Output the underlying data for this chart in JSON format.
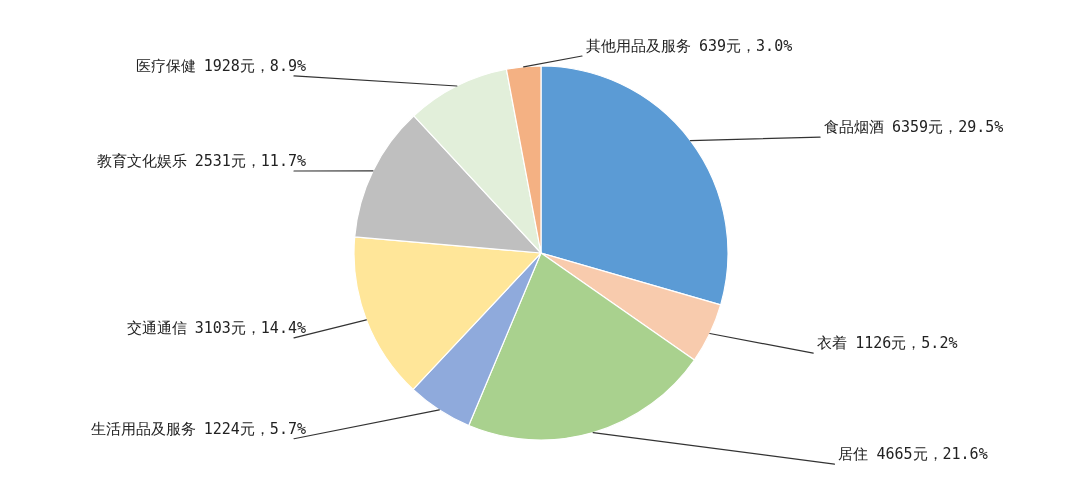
{
  "chart_data": {
    "type": "pie",
    "categories": [
      "食品烟酒",
      "衣着",
      "居住",
      "生活用品及服务",
      "交通通信",
      "教育文化娱乐",
      "医疗保健",
      "其他用品及服务"
    ],
    "values": [
      6359,
      1126,
      4665,
      1224,
      3103,
      2531,
      1928,
      639
    ],
    "colors": [
      "#5b9bd5",
      "#f8cbad",
      "#a9d18e",
      "#8faadc",
      "#ffe699",
      "#bfbfbf",
      "#e2efda",
      "#f4b183"
    ],
    "value_labels": [
      "6359元，29.5%",
      "1126元，5.2%",
      "4665元，21.6%",
      "1224元，5.7%",
      "3103元，14.4%",
      "2531元，11.7%",
      "1928元，8.9%",
      "639元，3.0%"
    ]
  }
}
